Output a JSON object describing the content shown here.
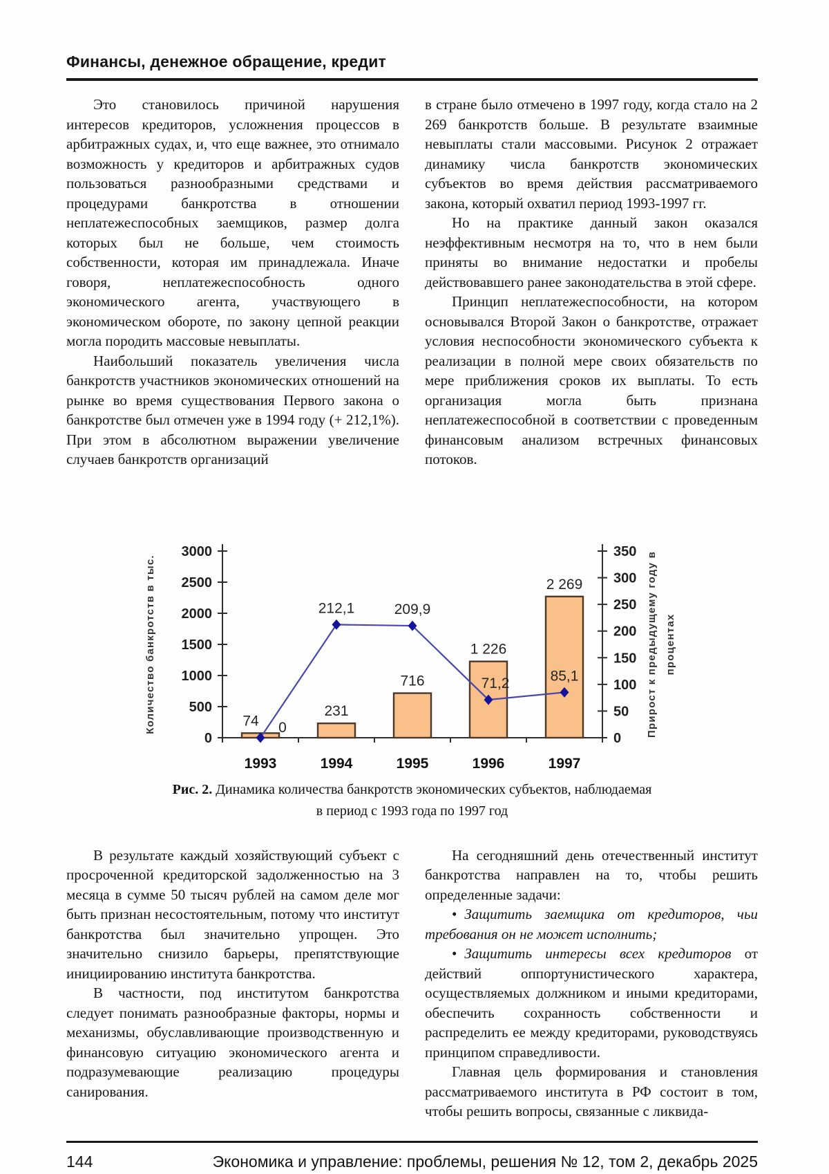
{
  "header": {
    "section_title": "Финансы, денежное обращение, кредит"
  },
  "article": {
    "top_left": {
      "p0": "Это становилось причиной нарушения интересов кредиторов, усложнения процессов в арбитражных судах, и, что еще важнее, это отнимало возможность у кредиторов и арбитражных судов пользоваться разнообразными средствами и процедурами банкротства в отношении неплатежеспособных заемщиков, размер долга которых был не больше, чем стоимость собственности, которая им принадлежала. Иначе говоря, неплатежеспособность одного экономического агента, участвующего в экономическом обороте, по закону цепной реакции могла породить массовые невыплаты.",
      "p1": "Наибольший показатель увеличения числа банкротств участников экономических отношений на рынке во время существования Первого закона о банкротстве был отмечен уже в 1994 году (+ 212,1%). При этом в абсолютном выражении увеличение случаев банкротств организаций"
    },
    "top_right": {
      "p0": "в стране было отмечено в 1997 году, когда стало на 2 269 банкротств больше. В результате взаимные невыплаты стали массовыми. Рисунок 2 отражает динамику числа банкротств экономических субъектов во время действия рассматриваемого закона, который охватил период 1993-1997 гг.",
      "p1": "Но на практике данный закон оказался неэффективным несмотря на то, что в нем были приняты во внимание недостатки и пробелы действовавшего ранее законодательства в этой сфере.",
      "p2": "Принцип неплатежеспособности, на котором основывался Второй Закон о банкротстве, отражает условия неспособности экономического субъекта к реализации в полной мере своих обязательств по мере приближения сроков их выплаты. То есть организация могла быть признана неплатежеспособной в соответствии с проведенным финансовым анализом встречных финансовых потоков."
    },
    "bottom_left": {
      "p0": "В результате каждый хозяйствующий субъект с просроченной кредиторской задолженностью на 3 месяца в сумме 50 тысяч рублей на самом деле мог быть признан несостоятельным, потому что институт банкротства был значительно упрощен. Это значительно снизило барьеры, препятствующие инициированию института банкротства.",
      "p1": "В частности, под институтом банкротства следует понимать разнообразные факторы, нормы и механизмы, обуславливающие производственную и финансовую ситуацию экономического агента и подразумевающие реализацию процедуры санирования."
    },
    "bottom_right": {
      "intro": "На сегодняшний день отечественный институт банкротства направлен на то, чтобы решить определенные задачи:",
      "bullet0_marker": "•",
      "bullet0_italic": "Защитить заемщика от кредиторов, чьи требования он не может исполнить;",
      "bullet1_marker": "•",
      "bullet1_italic": "Защитить интересы всех кредиторов",
      "bullet1_regular": " от действий оппортунистического характера, осуществляемых должником и иными кредиторами, обеспечить сохранность собственности и распределить ее между кредиторами, руководствуясь принципом справедливости.",
      "closing": "Главная цель формирования и становления рассматриваемого института в РФ состоит в том, чтобы решить вопросы, связанные с ликвида-"
    }
  },
  "figure": {
    "caption_bold": "Рис. 2.",
    "caption_line1": "Динамика количества банкротств экономических субъектов, наблюдаемая",
    "caption_line2": "в период с 1993 года по 1997 год"
  },
  "footer": {
    "page_number": "144",
    "journal_line": "Экономика и управление: проблемы, решения № 12, том 2, декабрь 2025"
  },
  "chart_data": {
    "type": "bar+line combo",
    "title": "",
    "legend": false,
    "grid": false,
    "categories": [
      "1993",
      "1994",
      "1995",
      "1996",
      "1997"
    ],
    "series": [
      {
        "name": "Количество банкротств",
        "type": "bar",
        "axis": "left",
        "values": [
          74,
          231,
          716,
          1226,
          2269
        ],
        "labels": [
          "74",
          "231",
          "716",
          "1 226",
          "2 269"
        ],
        "color": "#f9c08a",
        "border": "#4a3828"
      },
      {
        "name": "Прирост к предыдущему году, %",
        "type": "line",
        "axis": "right",
        "values": [
          0,
          212.1,
          209.9,
          71.2,
          85.1
        ],
        "labels": [
          "0",
          "212,1",
          "209,9",
          "71,2",
          "85,1"
        ],
        "color": "#4848ac",
        "marker": "#14149a"
      }
    ],
    "left_axis": {
      "title": "Количество банкротств в тыс.",
      "min": 0,
      "max": 3000,
      "step": 500
    },
    "right_axis": {
      "title": "Прирост к предыдущему году в процентах",
      "title_lines": [
        "Прирост к предыдущему году в",
        "процентах"
      ],
      "min": 0,
      "max": 350,
      "step": 50
    }
  }
}
